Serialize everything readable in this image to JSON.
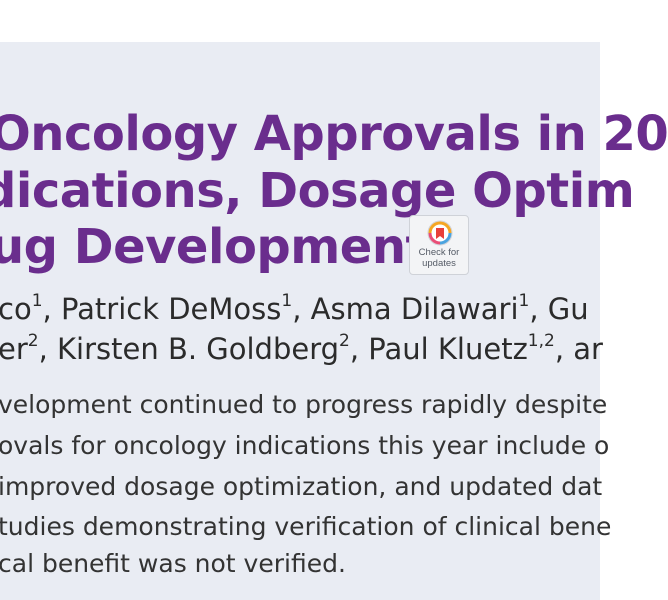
{
  "title": {
    "line1": "Oncology Approvals in 20",
    "line2": "dications, Dosage Optim",
    "line3": "ug Development"
  },
  "badge": {
    "icon": "check-for-updates-icon",
    "line1": "Check for",
    "line2": "updates"
  },
  "authors": {
    "line1": [
      {
        "name": "co",
        "sup": "1"
      },
      {
        "name": ", Patrick DeMoss",
        "sup": "1"
      },
      {
        "name": ", Asma Dilawari",
        "sup": "1"
      },
      {
        "name": ", Gu",
        "sup": ""
      }
    ],
    "line2": [
      {
        "name": "er",
        "sup": "2"
      },
      {
        "name": ", Kirsten B. Goldberg",
        "sup": "2"
      },
      {
        "name": ", Paul Kluetz",
        "sup": "1,2"
      },
      {
        "name": ", ar",
        "sup": ""
      }
    ]
  },
  "abstract": {
    "line1": "velopment continued to progress rapidly despite",
    "line2": "ovals for oncology indications this year include o",
    "line3": "improved dosage optimization, and updated dat",
    "line4": "tudies demonstrating verification of clinical bene",
    "line5": "cal benefit was not verified."
  },
  "colors": {
    "title": "#6a2d8d",
    "background": "#e9ecf3",
    "text": "#2b2b2b"
  }
}
